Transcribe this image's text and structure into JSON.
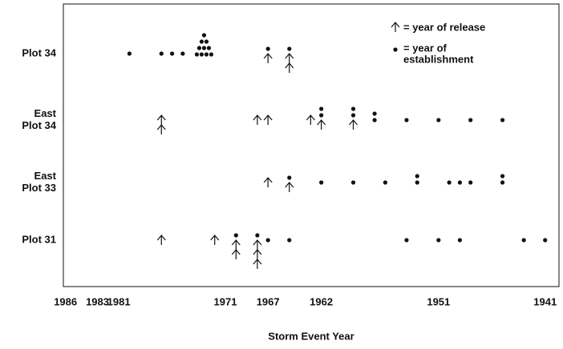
{
  "chart_data": {
    "type": "dot-plot",
    "xlabel": "Storm Event Year",
    "xlim": [
      1986.2,
      1939.7
    ],
    "xticks": [
      1986,
      1983,
      1981,
      1971,
      1967,
      1962,
      1951,
      1941
    ],
    "legend": {
      "release": "= year of release",
      "establishment": [
        "= year of",
        "establishment"
      ]
    },
    "rows": [
      {
        "label": [
          "Plot 34"
        ],
        "x": [
          1980,
          1977,
          1976,
          1975,
          1973,
          1967,
          1965
        ],
        "dots": [
          1,
          1,
          1,
          1,
          10,
          1,
          1
        ],
        "arrows": [
          0,
          0,
          0,
          0,
          0,
          1,
          2
        ]
      },
      {
        "label": [
          "East",
          "Plot  34"
        ],
        "x": [
          1977,
          1968,
          1967,
          1963,
          1962,
          1959,
          1957,
          1954,
          1951,
          1948,
          1945
        ],
        "dots": [
          0,
          0,
          0,
          0,
          2,
          2,
          2,
          1,
          1,
          1,
          1
        ],
        "arrows": [
          2,
          1,
          1,
          1,
          1,
          1,
          0,
          0,
          0,
          0,
          0
        ]
      },
      {
        "label": [
          "East",
          "Plot  33"
        ],
        "x": [
          1967,
          1965,
          1962,
          1959,
          1956,
          1953,
          1950,
          1949,
          1948,
          1945
        ],
        "dots": [
          0,
          1,
          1,
          1,
          1,
          2,
          1,
          1,
          1,
          2
        ],
        "arrows": [
          1,
          1,
          0,
          0,
          0,
          0,
          0,
          0,
          0,
          0
        ]
      },
      {
        "label": [
          "Plot 31"
        ],
        "x": [
          1977,
          1972,
          1970,
          1968,
          1967,
          1965,
          1954,
          1951,
          1949,
          1943,
          1941
        ],
        "dots": [
          0,
          0,
          1,
          1,
          1,
          1,
          1,
          1,
          1,
          1,
          1
        ],
        "arrows": [
          1,
          1,
          2,
          3,
          0,
          0,
          0,
          0,
          0,
          0,
          0
        ]
      }
    ]
  }
}
